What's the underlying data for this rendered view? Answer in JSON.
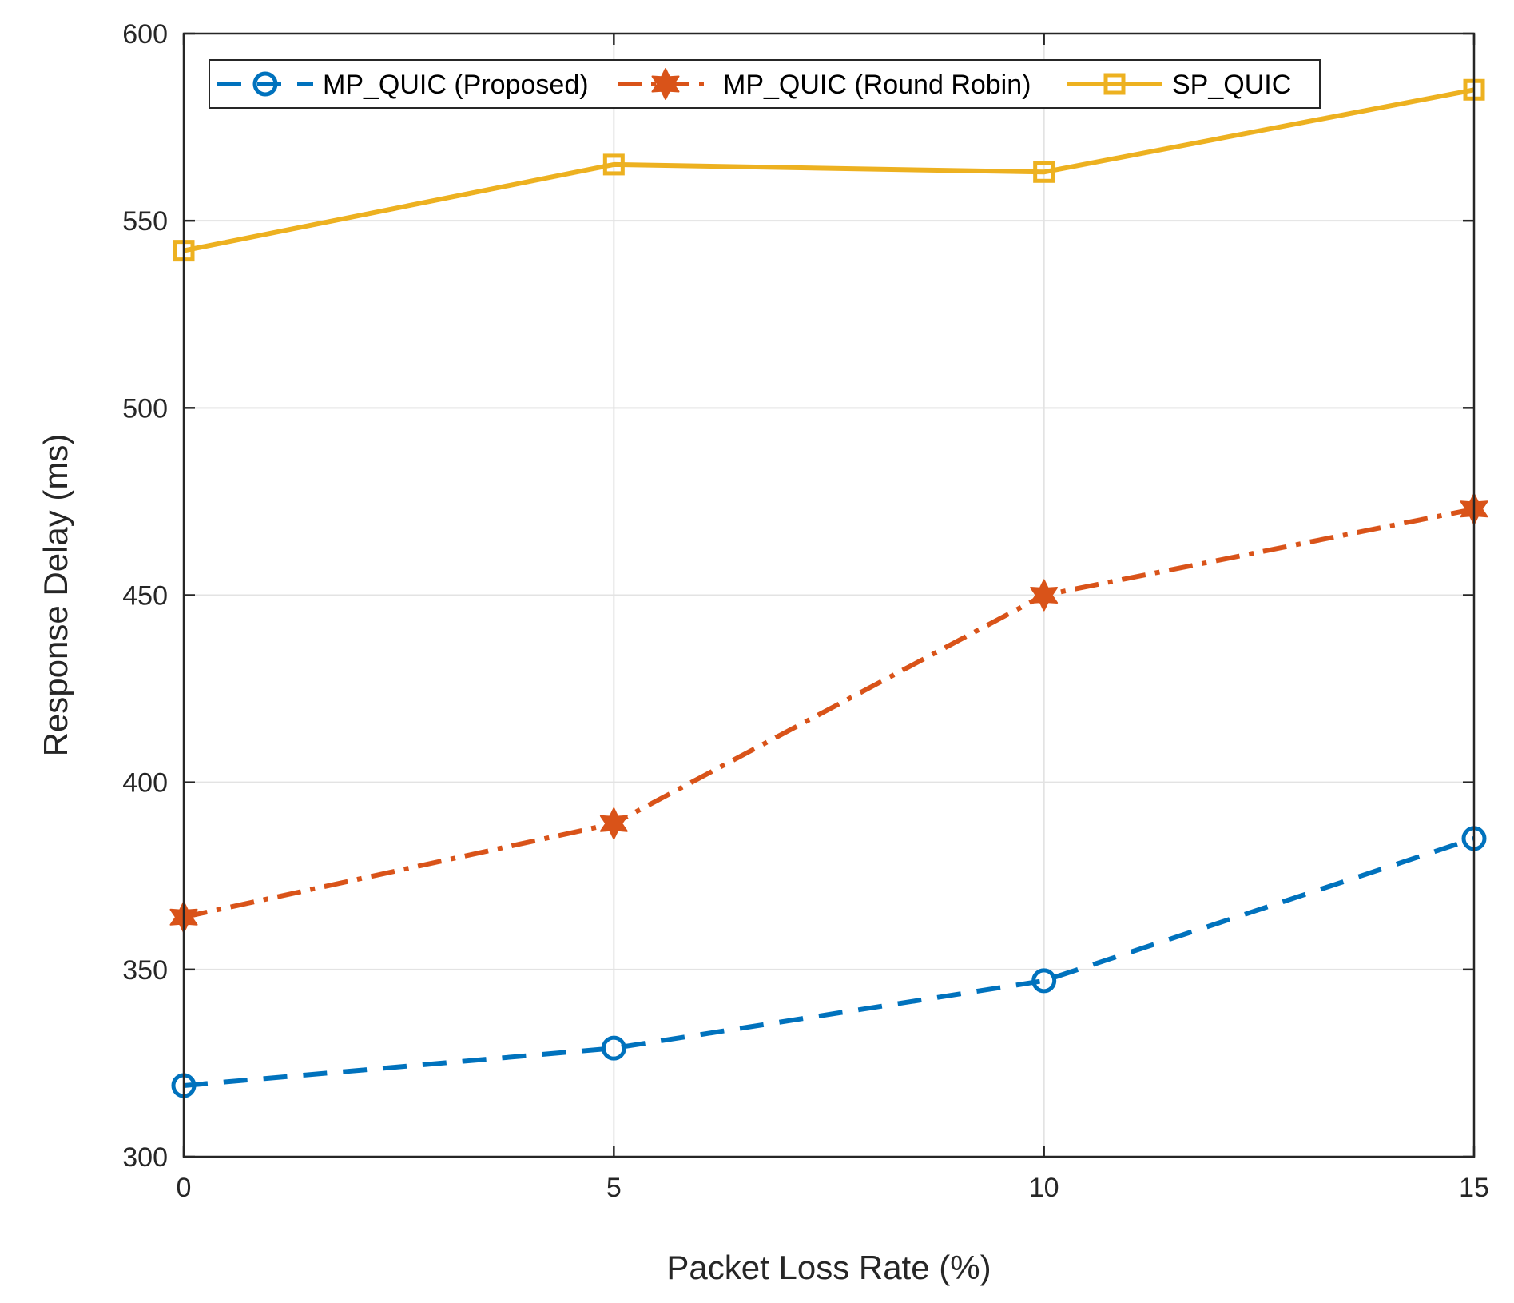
{
  "chart_data": {
    "type": "line",
    "title": "",
    "xlabel": "Packet Loss Rate (%)",
    "ylabel": "Response Delay (ms)",
    "x": [
      0,
      5,
      10,
      15
    ],
    "xticks": [
      "0",
      "5",
      "10",
      "15"
    ],
    "yticks": [
      "300",
      "350",
      "400",
      "450",
      "500",
      "550",
      "600"
    ],
    "xlim": [
      0,
      15
    ],
    "ylim": [
      300,
      600
    ],
    "grid": true,
    "legend_location": "top",
    "series": [
      {
        "name": "MP_QUIC (Proposed)",
        "values": [
          319,
          329,
          347,
          385
        ],
        "color": "#0072BD",
        "line_style": "dashed",
        "marker": "circle"
      },
      {
        "name": "MP_QUIC (Round Robin)",
        "values": [
          364,
          389,
          450,
          473
        ],
        "color": "#D95319",
        "line_style": "dashdot",
        "marker": "hexagram"
      },
      {
        "name": "SP_QUIC",
        "values": [
          542,
          565,
          563,
          585
        ],
        "color": "#EDB120",
        "line_style": "solid",
        "marker": "square"
      }
    ]
  }
}
